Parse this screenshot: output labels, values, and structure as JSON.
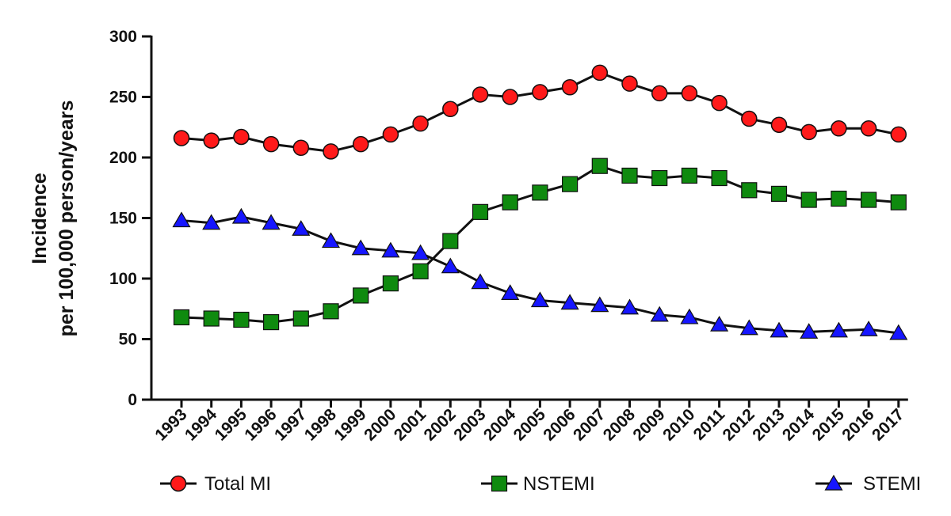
{
  "chart_data": {
    "type": "line",
    "title": "",
    "xlabel": "",
    "ylabel_line1": "Incidence",
    "ylabel_line2": "per 100,000 person/years",
    "ylim": [
      0,
      300
    ],
    "yticks": [
      0,
      50,
      100,
      150,
      200,
      250,
      300
    ],
    "categories": [
      "1993",
      "1994",
      "1995",
      "1996",
      "1997",
      "1998",
      "1999",
      "2000",
      "2001",
      "2002",
      "2003",
      "2004",
      "2005",
      "2006",
      "2007",
      "2008",
      "2009",
      "2010",
      "2011",
      "2012",
      "2013",
      "2014",
      "2015",
      "2016",
      "2017"
    ],
    "series": [
      {
        "name": "Total MI",
        "marker": "circle",
        "color": "#ff1a1a",
        "values": [
          216,
          214,
          217,
          211,
          208,
          205,
          211,
          219,
          228,
          240,
          252,
          250,
          254,
          258,
          270,
          261,
          253,
          253,
          245,
          232,
          227,
          221,
          224,
          224,
          219
        ]
      },
      {
        "name": "NSTEMI",
        "marker": "square",
        "color": "#0f8a0f",
        "values": [
          68,
          67,
          66,
          64,
          67,
          73,
          86,
          96,
          106,
          131,
          155,
          163,
          171,
          178,
          193,
          185,
          183,
          185,
          183,
          173,
          170,
          165,
          166,
          165,
          163
        ]
      },
      {
        "name": "STEMI",
        "marker": "triangle",
        "color": "#1616ff",
        "values": [
          148,
          146,
          151,
          146,
          141,
          131,
          125,
          123,
          121,
          110,
          97,
          88,
          82,
          80,
          78,
          76,
          70,
          68,
          62,
          59,
          57,
          56,
          57,
          58,
          55
        ]
      }
    ],
    "legend_position": "bottom"
  }
}
